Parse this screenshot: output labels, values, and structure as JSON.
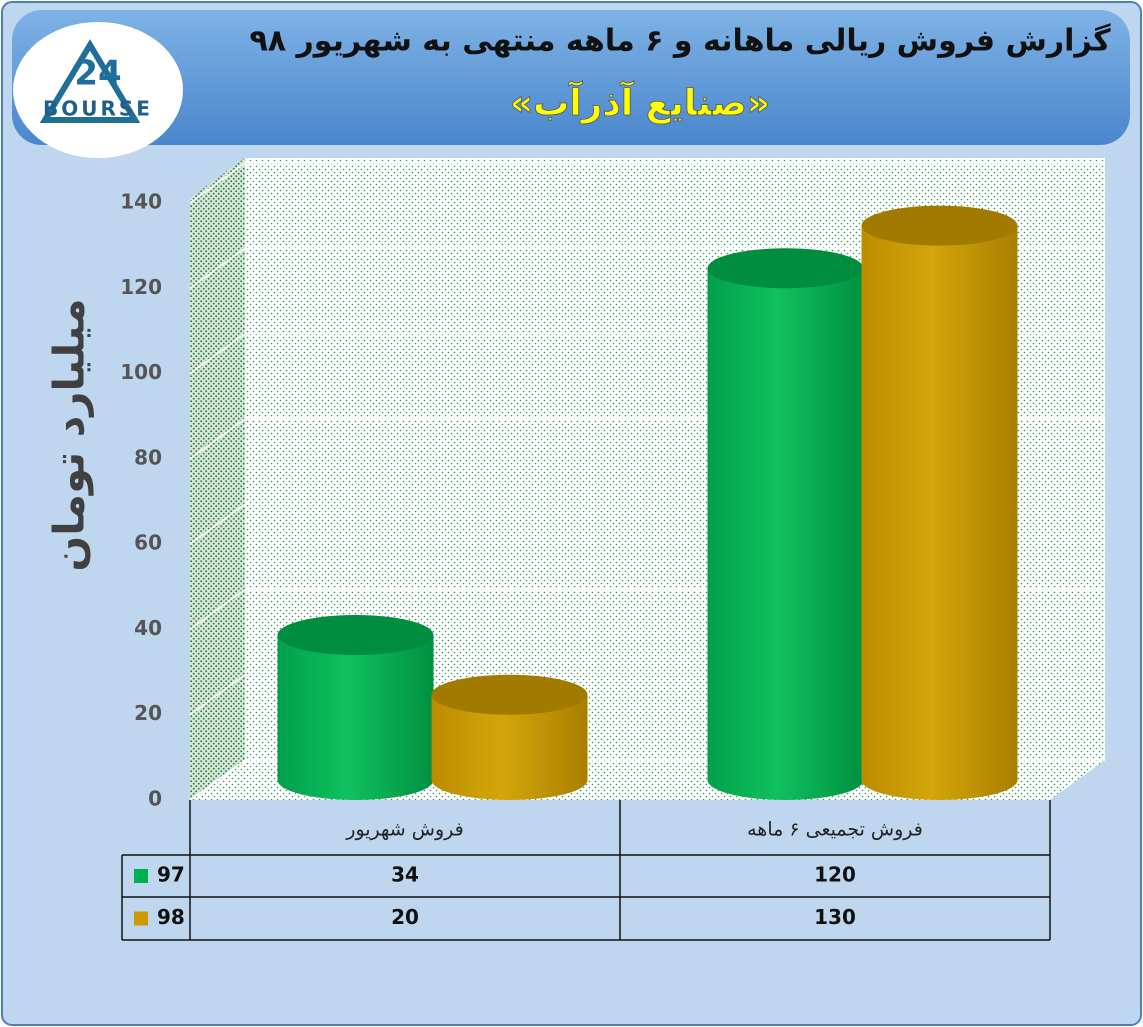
{
  "logo": {
    "number": "24",
    "text": "BOURSE"
  },
  "chart_data": {
    "type": "bar3d",
    "title": "گزارش فروش ریالی ماهانه و ۶ ماهه منتهی به شهریور ۹۸",
    "subtitle": "«صنایع آذرآب»",
    "y_label": "میلیارد تومان",
    "categories": [
      "فروش شهریور",
      "فروش تجمیعی ۶ ماهه"
    ],
    "series": [
      {
        "name": "97",
        "color": "#00b050",
        "values": [
          34,
          120
        ]
      },
      {
        "name": "98",
        "color": "#cc9900",
        "values": [
          20,
          130
        ]
      }
    ],
    "ylim": [
      0,
      140
    ],
    "yticks": [
      0,
      20,
      40,
      60,
      80,
      100,
      120,
      140
    ],
    "grid": true
  }
}
